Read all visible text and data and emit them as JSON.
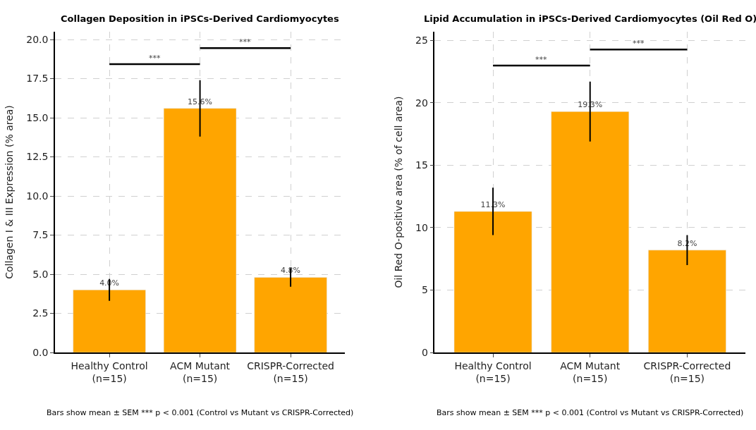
{
  "chart_data": [
    {
      "type": "bar",
      "title": "Collagen Deposition in iPSCs-Derived Cardiomyocytes",
      "ylabel": "Collagen I & III Expression (% area)",
      "categories": [
        "Healthy Control\n(n=15)",
        "ACM Mutant\n(n=15)",
        "CRISPR-Corrected\n(n=15)"
      ],
      "values": [
        4.0,
        15.6,
        4.8
      ],
      "errors": [
        0.7,
        1.8,
        0.6
      ],
      "value_labels": [
        "4.0%",
        "15.6%",
        "4.8%"
      ],
      "color": "#ffa500",
      "ylim": [
        0,
        20.5
      ],
      "yticks": [
        {
          "value": 0,
          "label": "0.0"
        },
        {
          "value": 2.5,
          "label": "2.5"
        },
        {
          "value": 5,
          "label": "5.0"
        },
        {
          "value": 7.5,
          "label": "7.5"
        },
        {
          "value": 10,
          "label": "10.0"
        },
        {
          "value": 12.5,
          "label": "12.5"
        },
        {
          "value": 15,
          "label": "15.0"
        },
        {
          "value": 17.5,
          "label": "17.5"
        },
        {
          "value": 20,
          "label": "20.0"
        }
      ],
      "grid": true,
      "annotations": [
        "***",
        "***",
        "Bars show mean ± SEM *** p < 0.001 (Control vs Mutant vs CRISPR-Corrected)"
      ]
    },
    {
      "type": "bar",
      "title": "Lipid Accumulation in iPSCs-Derived Cardiomyocytes (Oil Red O)",
      "ylabel": "Oil Red O-positive area (% of cell area)",
      "categories": [
        "Healthy Control\n(n=15)",
        "ACM Mutant\n(n=15)",
        "CRISPR-Corrected\n(n=15)"
      ],
      "values": [
        11.3,
        19.3,
        8.2
      ],
      "errors": [
        1.9,
        2.4,
        1.2
      ],
      "value_labels": [
        "11.3%",
        "19.3%",
        "8.2%"
      ],
      "color": "#ffa500",
      "ylim": [
        0,
        25.7
      ],
      "yticks": [
        0,
        5,
        10,
        15,
        20,
        25
      ],
      "grid": true,
      "annotations": [
        "***",
        "***",
        "Bars show mean ± SEM *** p < 0.001 (Control vs Mutant vs CRISPR-Corrected)"
      ]
    }
  ]
}
